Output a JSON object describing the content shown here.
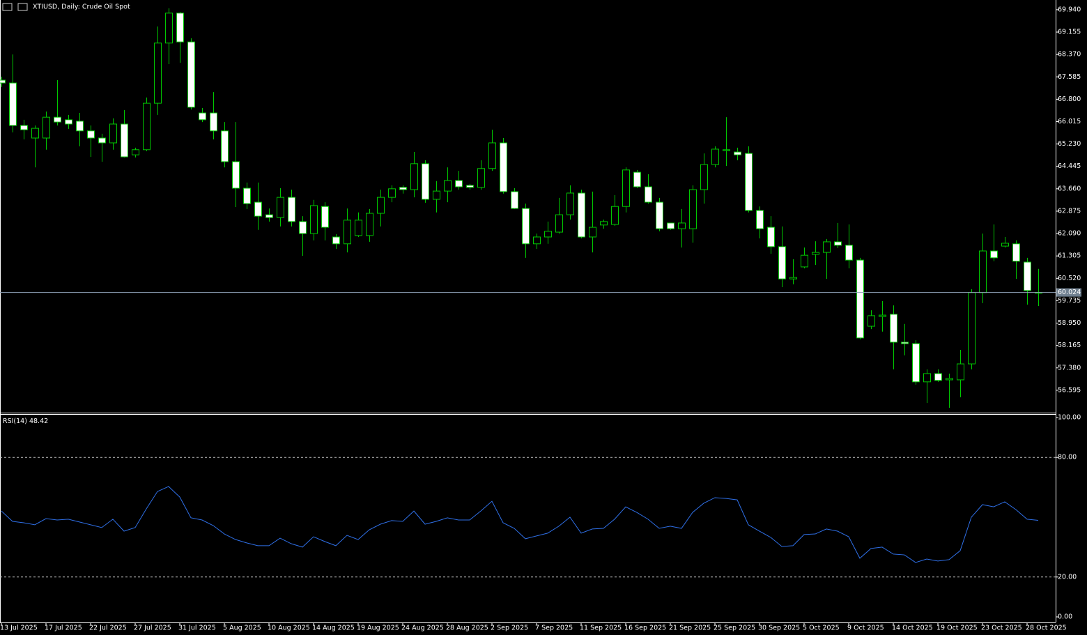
{
  "chart_data": [
    {
      "type": "candlestick",
      "title": "XTIUSD, Daily:  Crude Oil Spot",
      "categories": [
        "13 Jul 2025",
        null,
        null,
        null,
        "17 Jul 2025",
        null,
        null,
        null,
        "22 Jul 2025",
        null,
        null,
        null,
        "27 Jul 2025",
        null,
        null,
        null,
        "31 Jul 2025",
        null,
        null,
        null,
        "5 Aug 2025",
        null,
        null,
        null,
        "10 Aug 2025",
        null,
        null,
        null,
        "14 Aug 2025",
        null,
        null,
        null,
        "19 Aug 2025",
        null,
        null,
        null,
        "24 Aug 2025",
        null,
        null,
        null,
        "28 Aug 2025",
        null,
        null,
        null,
        "2 Sep 2025",
        null,
        null,
        null,
        "7 Sep 2025",
        null,
        null,
        null,
        "11 Sep 2025",
        null,
        null,
        null,
        "16 Sep 2025",
        null,
        null,
        null,
        "21 Sep 2025",
        null,
        null,
        null,
        "25 Sep 2025",
        null,
        null,
        null,
        "30 Sep 2025",
        null,
        null,
        null,
        "5 Oct 2025",
        null,
        null,
        null,
        "9 Oct 2025",
        null,
        null,
        null,
        "14 Oct 2025",
        null,
        null,
        null,
        "19 Oct 2025",
        null,
        null,
        null,
        "23 Oct 2025",
        null,
        null,
        null,
        "28 Oct 2025",
        null
      ],
      "open": [
        67.47,
        67.37,
        65.88,
        65.44,
        65.44,
        66.17,
        66.08,
        66.03,
        65.69,
        65.44,
        65.27,
        65.93,
        64.85,
        65.03,
        66.66,
        68.77,
        69.82,
        68.81,
        66.32,
        66.32,
        65.69,
        64.61,
        63.68,
        63.19,
        62.75,
        62.65,
        63.36,
        62.51,
        62.09,
        63.04,
        61.97,
        61.73,
        62.02,
        62.02,
        62.8,
        63.36,
        63.71,
        63.63,
        64.54,
        63.29,
        63.58,
        63.95,
        63.78,
        63.71,
        64.37,
        65.27,
        63.56,
        62.97,
        61.73,
        61.97,
        62.14,
        62.75,
        63.51,
        61.97,
        62.39,
        62.41,
        63.04,
        64.24,
        63.73,
        63.19,
        62.46,
        62.26,
        62.26,
        63.63,
        64.51,
        65.0,
        64.95,
        64.9,
        62.9,
        62.31,
        61.63,
        60.5,
        60.92,
        61.36,
        61.43,
        61.8,
        61.68,
        61.16,
        58.84,
        59.18,
        59.26,
        58.28,
        58.23,
        56.89,
        57.18,
        56.96,
        56.96,
        57.52,
        60.02,
        61.48,
        61.65,
        61.73,
        61.09,
        60.0
      ],
      "high": [
        67.59,
        68.37,
        66.08,
        65.88,
        66.37,
        67.47,
        66.25,
        66.32,
        65.88,
        65.59,
        66.13,
        66.42,
        65.1,
        66.86,
        69.35,
        69.99,
        69.86,
        68.94,
        66.49,
        67.05,
        66.0,
        66.0,
        63.88,
        63.88,
        62.97,
        63.68,
        63.63,
        62.7,
        63.27,
        63.19,
        62.07,
        62.97,
        62.83,
        62.95,
        63.63,
        63.78,
        63.78,
        64.95,
        64.66,
        63.93,
        64.41,
        64.29,
        63.83,
        64.66,
        65.73,
        65.44,
        63.68,
        63.14,
        62.09,
        62.51,
        63.34,
        63.78,
        63.63,
        63.56,
        62.58,
        63.44,
        64.41,
        64.32,
        64.17,
        63.34,
        62.46,
        62.95,
        63.78,
        64.9,
        65.15,
        66.17,
        65.1,
        65.15,
        63.04,
        62.7,
        62.34,
        61.19,
        61.6,
        61.82,
        61.9,
        62.46,
        62.41,
        61.24,
        59.4,
        59.72,
        59.57,
        58.92,
        58.35,
        57.33,
        57.33,
        57.18,
        58.01,
        60.14,
        62.09,
        62.41,
        61.97,
        61.85,
        61.24,
        60.85
      ],
      "low": [
        67.23,
        65.64,
        65.39,
        64.41,
        65.03,
        65.88,
        65.76,
        65.15,
        64.78,
        64.61,
        65.03,
        64.76,
        64.76,
        64.98,
        66.25,
        68.03,
        68.08,
        66.44,
        66.0,
        65.39,
        64.41,
        63.02,
        62.95,
        62.22,
        62.51,
        62.34,
        62.34,
        61.31,
        61.85,
        61.85,
        61.55,
        61.43,
        61.97,
        61.8,
        62.34,
        63.19,
        63.49,
        63.36,
        63.17,
        62.83,
        63.19,
        63.63,
        63.63,
        63.63,
        64.29,
        63.49,
        62.95,
        61.24,
        61.55,
        61.73,
        62.09,
        62.58,
        61.92,
        61.43,
        62.26,
        62.36,
        62.83,
        63.68,
        63.14,
        62.17,
        62.22,
        61.6,
        61.77,
        63.14,
        64.41,
        64.46,
        64.66,
        62.83,
        61.92,
        61.38,
        60.21,
        60.31,
        60.87,
        60.99,
        60.5,
        61.58,
        60.87,
        58.38,
        58.74,
        58.65,
        57.33,
        57.82,
        56.79,
        56.15,
        56.89,
        55.98,
        56.35,
        57.33,
        59.65,
        61.12,
        61.6,
        60.5,
        59.6,
        59.55
      ],
      "close": [
        67.37,
        65.88,
        65.73,
        65.78,
        66.17,
        66.0,
        65.93,
        65.69,
        65.44,
        65.27,
        65.93,
        64.78,
        65.03,
        66.66,
        68.77,
        69.82,
        68.81,
        66.52,
        66.08,
        65.69,
        64.61,
        63.68,
        63.14,
        62.7,
        62.65,
        63.36,
        62.51,
        62.09,
        63.07,
        62.31,
        61.73,
        62.56,
        62.56,
        62.8,
        63.36,
        63.66,
        63.63,
        64.54,
        63.29,
        63.58,
        63.95,
        63.73,
        63.71,
        64.37,
        65.27,
        63.56,
        62.97,
        61.73,
        61.97,
        62.17,
        62.75,
        63.51,
        61.97,
        62.31,
        62.51,
        63.04,
        64.32,
        63.73,
        63.19,
        62.26,
        62.26,
        62.46,
        63.63,
        64.51,
        65.05,
        65.03,
        64.85,
        62.9,
        62.26,
        61.63,
        60.5,
        60.55,
        61.33,
        61.43,
        61.8,
        61.68,
        61.16,
        58.43,
        59.21,
        59.23,
        58.28,
        58.23,
        56.89,
        57.18,
        56.94,
        57.01,
        57.52,
        60.02,
        61.48,
        61.24,
        61.75,
        61.12,
        60.09,
        60.024
      ],
      "up_color": "#000000",
      "down_color": "#ffffff",
      "wick_color": "#00c800",
      "ylim": [
        55.81,
        70.28
      ],
      "yticks": [
        {
          "value": 69.94,
          "label": "69.940"
        },
        {
          "value": 69.155,
          "label": "69.155"
        },
        {
          "value": 68.37,
          "label": "68.370"
        },
        {
          "value": 67.585,
          "label": "67.585"
        },
        {
          "value": 66.8,
          "label": "66.800"
        },
        {
          "value": 66.015,
          "label": "66.015"
        },
        {
          "value": 65.23,
          "label": "65.230"
        },
        {
          "value": 64.445,
          "label": "64.445"
        },
        {
          "value": 63.66,
          "label": "63.660"
        },
        {
          "value": 62.875,
          "label": "62.875"
        },
        {
          "value": 62.09,
          "label": "62.090"
        },
        {
          "value": 61.305,
          "label": "61.305"
        },
        {
          "value": 60.52,
          "label": "60.520"
        },
        {
          "value": 59.735,
          "label": "59.735"
        },
        {
          "value": 58.95,
          "label": "58.950"
        },
        {
          "value": 58.165,
          "label": "58.165"
        },
        {
          "value": 57.38,
          "label": "57.380"
        },
        {
          "value": 56.595,
          "label": "56.595"
        }
      ],
      "current_price": 60.024
    },
    {
      "type": "line",
      "series": [
        {
          "name": "RSI(14)",
          "color": "#2f6fe6",
          "values": [
            53.1,
            47.9,
            47.2,
            46.2,
            49.3,
            48.6,
            49.0,
            47.6,
            46.2,
            44.8,
            49.0,
            43.0,
            44.8,
            54.2,
            62.9,
            65.4,
            60.1,
            49.7,
            48.6,
            45.8,
            41.6,
            38.8,
            37.1,
            35.7,
            35.7,
            39.5,
            36.7,
            35.0,
            40.2,
            37.8,
            35.7,
            40.9,
            38.8,
            43.7,
            46.5,
            48.3,
            47.9,
            53.1,
            46.5,
            47.9,
            49.7,
            48.6,
            48.6,
            53.1,
            58.0,
            47.2,
            44.4,
            39.2,
            40.6,
            42.0,
            45.5,
            50.0,
            42.0,
            44.1,
            44.4,
            49.0,
            55.2,
            52.4,
            49.0,
            44.4,
            45.5,
            44.4,
            52.4,
            57.0,
            59.8,
            59.4,
            58.7,
            46.2,
            43.0,
            39.9,
            35.3,
            35.7,
            41.3,
            41.6,
            44.1,
            43.0,
            40.2,
            29.4,
            34.3,
            35.0,
            31.5,
            31.1,
            27.3,
            29.0,
            28.0,
            28.7,
            33.2,
            50.0,
            56.3,
            55.2,
            57.7,
            53.8,
            49.0,
            48.42
          ]
        }
      ],
      "ylim": [
        0,
        100
      ],
      "yticks": [
        {
          "value": 100,
          "label": "100.00"
        },
        {
          "value": 80,
          "label": "80.00"
        },
        {
          "value": 20,
          "label": "20.00"
        },
        {
          "value": 0,
          "label": "0.00"
        }
      ],
      "levels": [
        80,
        20
      ]
    }
  ]
}
